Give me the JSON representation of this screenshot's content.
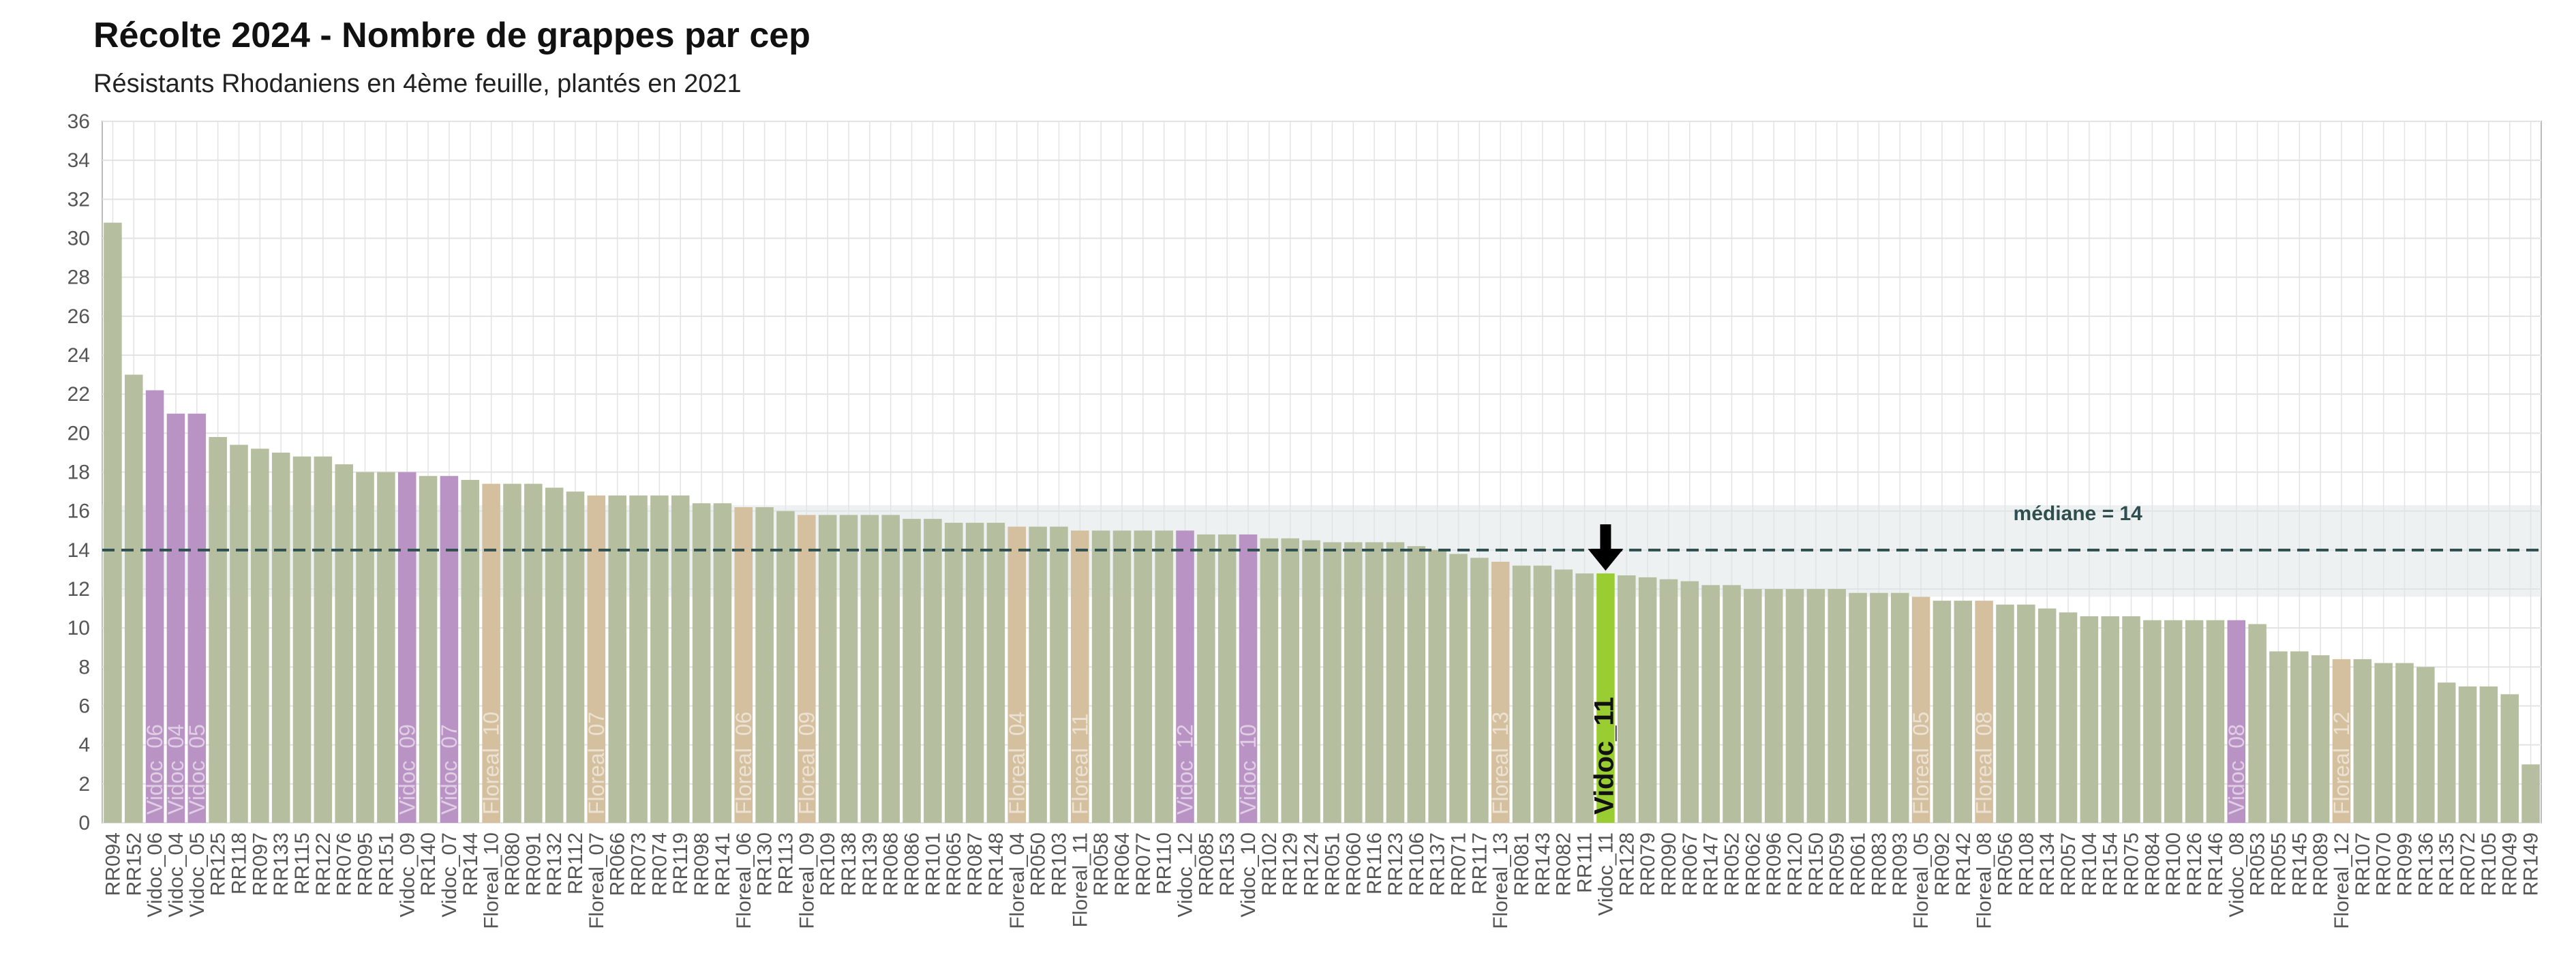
{
  "chart_data": {
    "type": "bar",
    "title": "Récolte 2024 - Nombre de grappes par cep",
    "subtitle": "Résistants Rhodaniens en 4ème feuille, plantés en 2021",
    "xlabel": "",
    "ylabel": "",
    "ylim": [
      0,
      36
    ],
    "yticks": [
      0,
      2,
      4,
      6,
      8,
      10,
      12,
      14,
      16,
      18,
      20,
      22,
      24,
      26,
      28,
      30,
      32,
      34,
      36
    ],
    "grid": true,
    "median": {
      "value": 14,
      "label": "médiane = 14",
      "band": [
        11.6,
        16.3
      ]
    },
    "highlight": "Vidoc_11",
    "colors": {
      "RR": "#b5bf9f",
      "Vidoc": "#b993c4",
      "Floreal": "#d4bf9e",
      "highlight": "#9acd32",
      "band": "#dfe6e6",
      "median_line": "#2f4f4f",
      "grid": "#e3e3e3",
      "arrow": "#000000"
    },
    "categories": [
      "RR094",
      "RR152",
      "Vidoc_06",
      "Vidoc_04",
      "Vidoc_05",
      "RR125",
      "RR118",
      "RR097",
      "RR133",
      "RR115",
      "RR122",
      "RR076",
      "RR095",
      "RR151",
      "Vidoc_09",
      "RR140",
      "Vidoc_07",
      "RR144",
      "Floreal_10",
      "RR080",
      "RR091",
      "RR132",
      "RR112",
      "Floreal_07",
      "RR066",
      "RR073",
      "RR074",
      "RR119",
      "RR098",
      "RR141",
      "Floreal_06",
      "RR130",
      "RR113",
      "Floreal_09",
      "RR109",
      "RR138",
      "RR139",
      "RR068",
      "RR086",
      "RR101",
      "RR065",
      "RR087",
      "RR148",
      "Floreal_04",
      "RR050",
      "RR103",
      "Floreal_11",
      "RR058",
      "RR064",
      "RR077",
      "RR110",
      "Vidoc_12",
      "RR085",
      "RR153",
      "Vidoc_10",
      "RR102",
      "RR129",
      "RR124",
      "RR051",
      "RR060",
      "RR116",
      "RR123",
      "RR106",
      "RR137",
      "RR071",
      "RR117",
      "Floreal_13",
      "RR081",
      "RR143",
      "RR082",
      "RR111",
      "Vidoc_11",
      "RR128",
      "RR079",
      "RR090",
      "RR067",
      "RR147",
      "RR052",
      "RR062",
      "RR096",
      "RR120",
      "RR150",
      "RR059",
      "RR061",
      "RR083",
      "RR093",
      "Floreal_05",
      "RR092",
      "RR142",
      "Floreal_08",
      "RR056",
      "RR108",
      "RR134",
      "RR057",
      "RR104",
      "RR154",
      "RR075",
      "RR084",
      "RR100",
      "RR126",
      "RR146",
      "Vidoc_08",
      "RR053",
      "RR055",
      "RR145",
      "RR089",
      "Floreal_12",
      "RR107",
      "RR070",
      "RR099",
      "RR136",
      "RR135",
      "RR072",
      "RR105",
      "RR049",
      "RR149"
    ],
    "values": [
      30.8,
      23.0,
      22.2,
      21.0,
      21.0,
      19.8,
      19.4,
      19.2,
      19.0,
      18.8,
      18.8,
      18.4,
      18.0,
      18.0,
      18.0,
      17.8,
      17.8,
      17.6,
      17.4,
      17.4,
      17.4,
      17.2,
      17.0,
      16.8,
      16.8,
      16.8,
      16.8,
      16.8,
      16.4,
      16.4,
      16.2,
      16.2,
      16.0,
      15.8,
      15.8,
      15.8,
      15.8,
      15.8,
      15.6,
      15.6,
      15.4,
      15.4,
      15.4,
      15.2,
      15.2,
      15.2,
      15.0,
      15.0,
      15.0,
      15.0,
      15.0,
      15.0,
      14.8,
      14.8,
      14.8,
      14.6,
      14.6,
      14.5,
      14.4,
      14.4,
      14.4,
      14.4,
      14.2,
      14.0,
      13.8,
      13.6,
      13.4,
      13.2,
      13.2,
      13.0,
      12.8,
      12.8,
      12.7,
      12.6,
      12.5,
      12.4,
      12.2,
      12.2,
      12.0,
      12.0,
      12.0,
      12.0,
      12.0,
      11.8,
      11.8,
      11.8,
      11.6,
      11.4,
      11.4,
      11.4,
      11.2,
      11.2,
      11.0,
      10.8,
      10.6,
      10.6,
      10.6,
      10.4,
      10.4,
      10.4,
      10.4,
      10.4,
      10.2,
      8.8,
      8.8,
      8.6,
      8.4,
      8.4,
      8.2,
      8.2,
      8.0,
      7.2,
      7.0,
      7.0,
      6.6,
      3.0
    ],
    "in_bar_labels": [
      "Vidoc_06",
      "Vidoc_04",
      "Vidoc_05",
      "Vidoc_09",
      "Vidoc_07",
      "Floreal_10",
      "Floreal_07",
      "Floreal_06",
      "Floreal_09",
      "Floreal_04",
      "Floreal_11",
      "Vidoc_12",
      "Vidoc_10",
      "Floreal_13",
      "Vidoc_11",
      "Floreal_05",
      "Floreal_08",
      "Vidoc_08",
      "Floreal_12"
    ]
  }
}
